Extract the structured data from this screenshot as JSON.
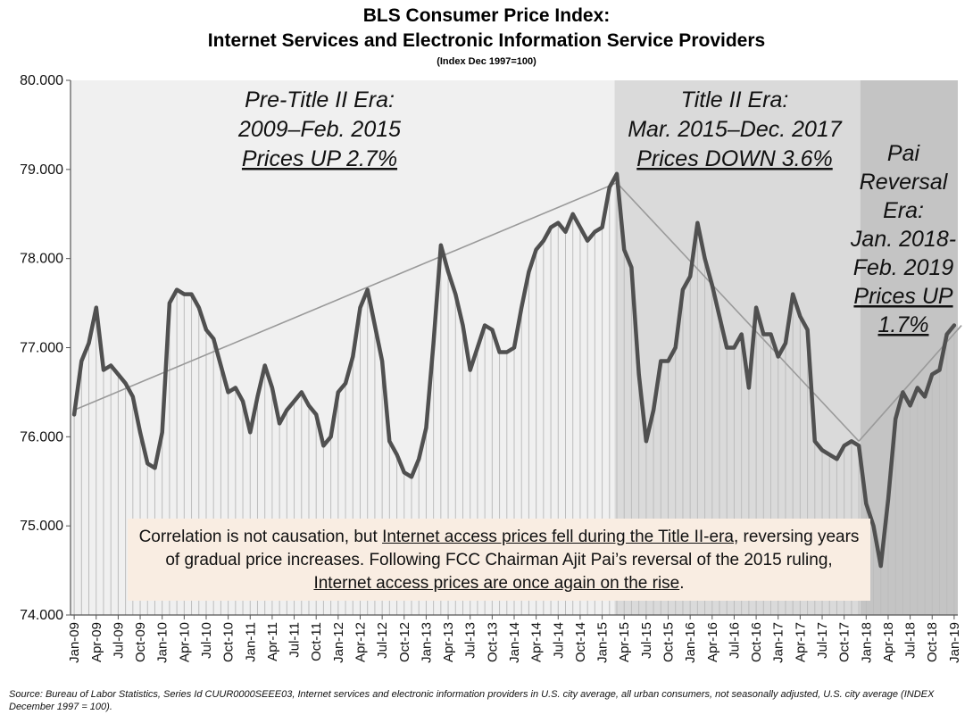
{
  "title_line1": "BLS Consumer Price Index:",
  "title_line2": "Internet Services and Electronic Information Service Providers",
  "subtitle": "(Index Dec 1997=100)",
  "eras": [
    {
      "lines": [
        "Pre-Title II Era:",
        "2009–Feb. 2015"
      ],
      "underlined": "Prices UP 2.7%",
      "shade": "#f0f0f0"
    },
    {
      "lines": [
        "Title II Era:",
        "Mar. 2015–Dec. 2017"
      ],
      "underlined": "Prices DOWN 3.6%",
      "shade": "#dadada"
    },
    {
      "lines": [
        "Pai",
        "Reversal",
        "Era:",
        "Jan. 2018-",
        "Feb. 2019"
      ],
      "underlined": "Prices UP",
      "underlined2": "1.7%",
      "shade": "#c4c4c4"
    }
  ],
  "note": {
    "part1": "Correlation is not causation, but ",
    "link1": "Internet access prices fell during the Title II-era",
    "part2": ", reversing years of gradual price increases. Following FCC Chairman Ajit Pai’s reversal of the 2015 ruling, ",
    "link2": "Internet access prices are once again on the rise",
    "part3": "."
  },
  "source": "Source: Bureau of Labor Statistics, Series Id CUUR0000SEEE03, Internet services and electronic information providers in U.S. city average, all urban consumers, not seasonally adjusted, U.S. city average (INDEX December 1997 = 100).",
  "colors": {
    "line": "#505050",
    "trend": "#9a9a9a",
    "bars": "#bdbdbd",
    "note_bg": "#f9ede2"
  },
  "chart_data": {
    "type": "line",
    "ylim": [
      74,
      80
    ],
    "y_ticks": [
      "74.000",
      "75.000",
      "76.000",
      "77.000",
      "78.000",
      "79.000",
      "80.000"
    ],
    "x_tick_labels": [
      "Jan-09",
      "Apr-09",
      "Jul-09",
      "Oct-09",
      "Jan-10",
      "Apr-10",
      "Jul-10",
      "Oct-10",
      "Jan-11",
      "Apr-11",
      "Jul-11",
      "Oct-11",
      "Jan-12",
      "Apr-12",
      "Jul-12",
      "Oct-12",
      "Jan-13",
      "Apr-13",
      "Jul-13",
      "Oct-13",
      "Jan-14",
      "Apr-14",
      "Jul-14",
      "Oct-14",
      "Jan-15",
      "Apr-15",
      "Jul-15",
      "Oct-15",
      "Jan-16",
      "Apr-16",
      "Jul-16",
      "Oct-16",
      "Jan-17",
      "Apr-17",
      "Jul-17",
      "Oct-17",
      "Jan-18",
      "Apr-18",
      "Jul-18",
      "Oct-18",
      "Jan-19"
    ],
    "x_start": "Jan-09",
    "x_end": "Feb-19",
    "grid": false,
    "series": [
      {
        "values": [
          76.25,
          76.85,
          77.05,
          77.45,
          76.75,
          76.8,
          76.7,
          76.6,
          76.45,
          76.05,
          75.7,
          75.65,
          76.05,
          77.5,
          77.65,
          77.6,
          77.6,
          77.45,
          77.2,
          77.1,
          76.8,
          76.5,
          76.55,
          76.4,
          76.05,
          76.45,
          76.8,
          76.55,
          76.15,
          76.3,
          76.4,
          76.5,
          76.35,
          76.25,
          75.9,
          76.0,
          76.5,
          76.6,
          76.9,
          77.45,
          77.65,
          77.25,
          76.85,
          75.95,
          75.8,
          75.6,
          75.55,
          75.75,
          76.1,
          77.05,
          78.15,
          77.85,
          77.6,
          77.25,
          76.75,
          77.0,
          77.25,
          77.2,
          76.95,
          76.95,
          77.0,
          77.45,
          77.85,
          78.1,
          78.2,
          78.35,
          78.4,
          78.3,
          78.5,
          78.35,
          78.2,
          78.3,
          78.35,
          78.8,
          78.95,
          78.1,
          77.9,
          76.7,
          75.95,
          76.3,
          76.85,
          76.85,
          77.0,
          77.65,
          77.8,
          78.4,
          78.0,
          77.7,
          77.35,
          77.0,
          77.0,
          77.15,
          76.55,
          77.45,
          77.15,
          77.15,
          76.9,
          77.05,
          77.6,
          77.35,
          77.2,
          75.95,
          75.85,
          75.8,
          75.75,
          75.9,
          75.95,
          75.9,
          75.25,
          75.0,
          74.55,
          75.3,
          76.2,
          76.5,
          76.35,
          76.55,
          76.45,
          76.7,
          76.75,
          77.15,
          77.25
        ]
      },
      {
        "name_hidden": true,
        "values": []
      }
    ],
    "trend_lines": [
      {
        "from": [
          "Jan-09",
          76.3
        ],
        "to": [
          "Mar-15",
          78.85
        ]
      },
      {
        "from": [
          "Mar-15",
          78.85
        ],
        "to": [
          "Dec-17",
          75.95
        ]
      },
      {
        "from": [
          "Dec-17",
          75.95
        ],
        "to": [
          "Feb-19",
          77.25
        ]
      }
    ],
    "era_bounds": [
      "Jan-09",
      "Mar-15",
      "Dec-17",
      "Feb-19"
    ]
  }
}
